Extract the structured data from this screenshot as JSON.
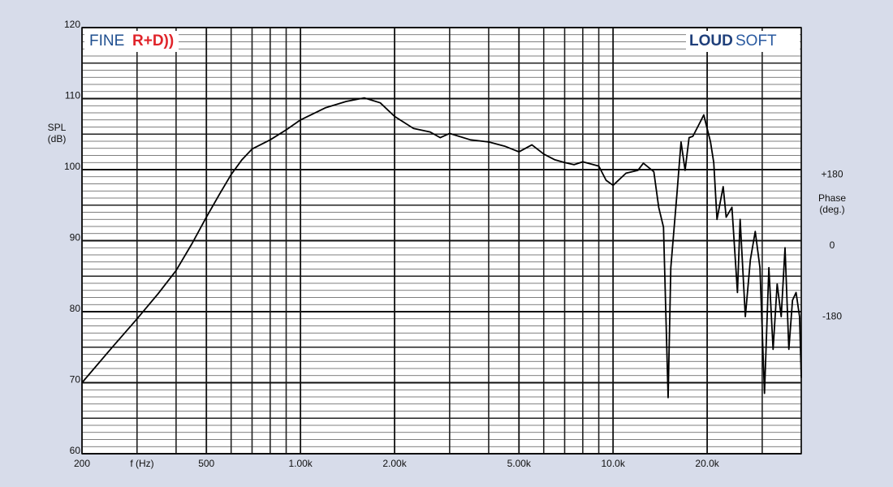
{
  "chart_data": {
    "type": "line",
    "log_x": true,
    "xlim": [
      200,
      40000
    ],
    "ylim": [
      60,
      120
    ],
    "y2lim": [
      -527,
      553
    ],
    "xticks": [
      200,
      500,
      {
        "value": 1000,
        "label": "1.00k"
      },
      {
        "value": 2000,
        "label": "2.00k"
      },
      {
        "value": 5000,
        "label": "5.00k"
      },
      {
        "value": 10000,
        "label": "10.0k"
      },
      {
        "value": 20000,
        "label": "20.0k"
      }
    ],
    "xminor": [
      300,
      400,
      600,
      700,
      800,
      900,
      3000,
      4000,
      6000,
      7000,
      8000,
      9000,
      30000,
      40000
    ],
    "yticks": [
      60,
      70,
      80,
      90,
      100,
      110,
      120
    ],
    "ymid": [
      65,
      75,
      85,
      95,
      105,
      115
    ],
    "yminor": [
      61,
      62,
      63,
      64,
      66,
      67,
      68,
      69,
      71,
      72,
      73,
      74,
      76,
      77,
      78,
      79,
      81,
      82,
      83,
      84,
      86,
      87,
      88,
      89,
      91,
      92,
      93,
      94,
      96,
      97,
      98,
      99,
      101,
      102,
      103,
      104,
      106,
      107,
      108,
      109,
      111,
      112,
      113,
      114,
      116,
      117,
      118,
      119
    ],
    "y2ticks": [
      {
        "value": 180,
        "label": "+180"
      },
      0,
      -180
    ],
    "x_label": "f (Hz)",
    "y_label": [
      "SPL",
      "(dB)"
    ],
    "y2_label": [
      "Phase",
      "(deg.)"
    ],
    "logo_left": [
      "FINE",
      "R+D))"
    ],
    "logo_right": [
      "LOUD",
      "SOFT"
    ],
    "grid": true,
    "series": [
      {
        "color": "#000000",
        "x": [
          200,
          250,
          300,
          350,
          400,
          450,
          500,
          550,
          600,
          650,
          700,
          800,
          900,
          1000,
          1200,
          1400,
          1600,
          1800,
          2000,
          2300,
          2600,
          2800,
          3000,
          3500,
          4000,
          4500,
          5000,
          5500,
          6000,
          6500,
          7000,
          7500,
          8000,
          9000,
          9500,
          10000,
          11000,
          12000,
          12500,
          13500,
          14000,
          14500,
          15000,
          15300,
          16000,
          16500,
          17000,
          17500,
          18000,
          19000,
          19500,
          20500,
          21000,
          21500,
          22500,
          23000,
          24000,
          25000,
          25500,
          26500,
          27500,
          28500,
          29500,
          30500,
          31500,
          32500,
          33500,
          34500,
          35500,
          36500,
          37500,
          38500,
          39500,
          40000
        ],
        "values": [
          70.0,
          75.0,
          79.0,
          82.5,
          85.8,
          89.6,
          93.3,
          96.5,
          99.3,
          101.4,
          102.9,
          104.2,
          105.6,
          107.0,
          108.7,
          109.6,
          110.1,
          109.4,
          107.5,
          105.8,
          105.3,
          104.5,
          105.1,
          104.2,
          103.9,
          103.3,
          102.5,
          103.5,
          102.2,
          101.4,
          101.0,
          100.7,
          101.1,
          100.5,
          98.5,
          97.8,
          99.5,
          99.9,
          100.9,
          99.7,
          94.7,
          91.9,
          67.9,
          86.2,
          96.5,
          103.9,
          99.9,
          104.5,
          104.7,
          106.7,
          107.7,
          103.9,
          101.0,
          93.0,
          97.6,
          93.3,
          94.7,
          82.7,
          93.0,
          79.3,
          87.3,
          91.3,
          86.2,
          68.5,
          86.2,
          74.7,
          83.9,
          79.3,
          89.0,
          74.7,
          81.6,
          82.7,
          79.3,
          70.7
        ]
      }
    ]
  }
}
